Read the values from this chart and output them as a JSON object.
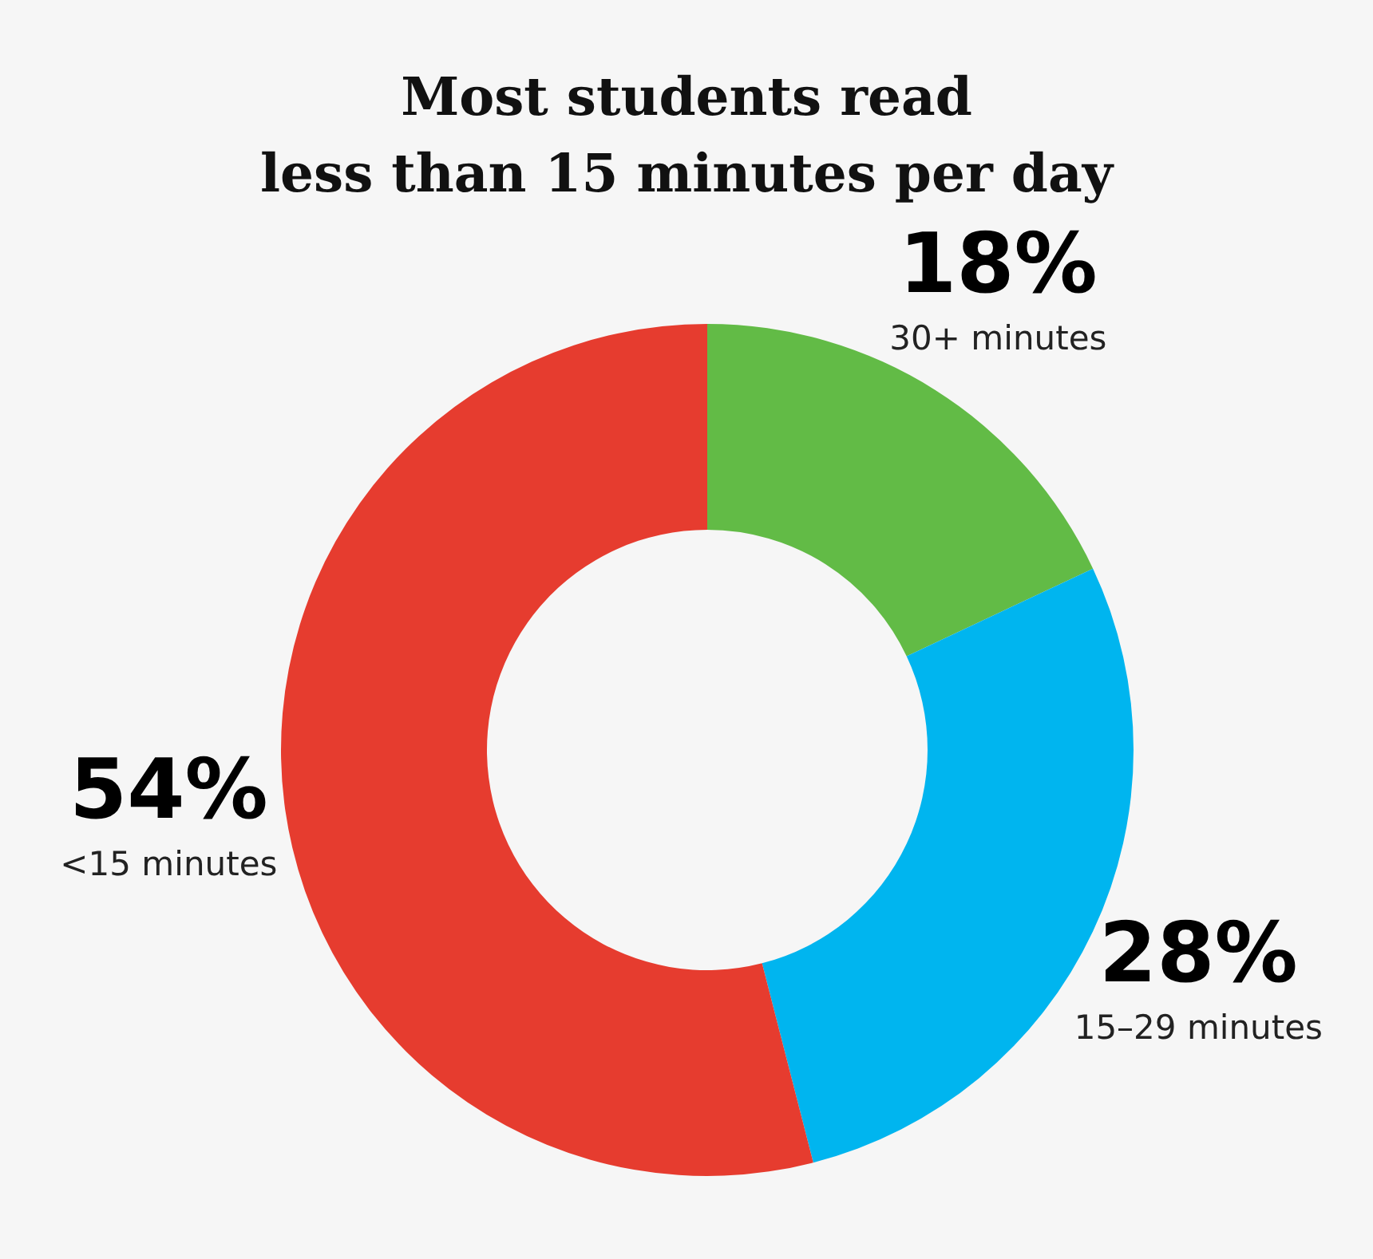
{
  "chart_data": {
    "type": "donut",
    "title": "Most students read\nless than 15 minutes per day",
    "categories": [
      "30+ minutes",
      "15–29 minutes",
      "<15 minutes"
    ],
    "values": [
      18,
      28,
      54
    ],
    "colors": [
      "#62bb46",
      "#00b5ef",
      "#e63c2f"
    ],
    "value_labels": [
      "18%",
      "28%",
      "54%"
    ]
  }
}
